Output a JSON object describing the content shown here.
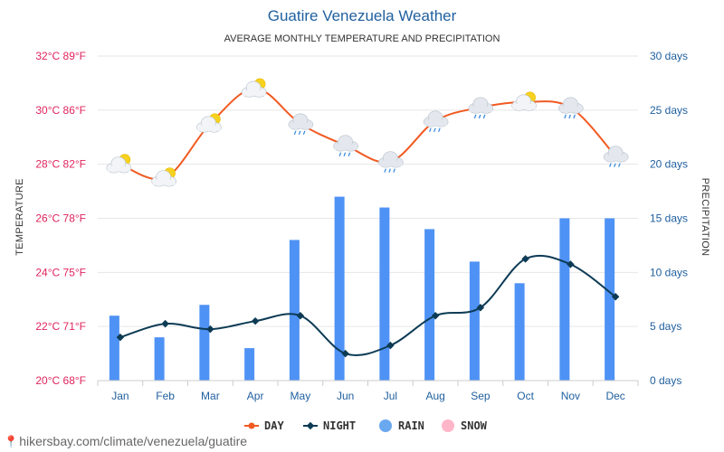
{
  "footer": {
    "source_text": "hikersbay.com/climate/venezuela/guatire",
    "pin_icon": "map-pin-icon"
  },
  "chart_data": {
    "type": "bar+line",
    "title": "Guatire Venezuela Weather",
    "subtitle": "AVERAGE MONTHLY TEMPERATURE AND PRECIPITATION",
    "ylabel_left": "TEMPERATURE",
    "ylabel_right": "PRECIPITATION",
    "categories": [
      "Jan",
      "Feb",
      "Mar",
      "Apr",
      "May",
      "Jun",
      "Jul",
      "Aug",
      "Sep",
      "Oct",
      "Nov",
      "Dec"
    ],
    "ylim_left": [
      20,
      32
    ],
    "ylim_right": [
      0,
      30
    ],
    "left_ticks": [
      {
        "value": 32,
        "label": "32°C 89°F"
      },
      {
        "value": 30,
        "label": "30°C 86°F"
      },
      {
        "value": 28,
        "label": "28°C 82°F"
      },
      {
        "value": 26,
        "label": "26°C 78°F"
      },
      {
        "value": 24,
        "label": "24°C 75°F"
      },
      {
        "value": 22,
        "label": "22°C 71°F"
      },
      {
        "value": 20,
        "label": "20°C 68°F"
      }
    ],
    "right_ticks": [
      {
        "value": 30,
        "label": "30 days"
      },
      {
        "value": 25,
        "label": "25 days"
      },
      {
        "value": 20,
        "label": "20 days"
      },
      {
        "value": 15,
        "label": "15 days"
      },
      {
        "value": 10,
        "label": "10 days"
      },
      {
        "value": 5,
        "label": "5 days"
      },
      {
        "value": 0,
        "label": "0 days"
      }
    ],
    "grid": true,
    "legend_position": "bottom",
    "series": [
      {
        "name": "DAY",
        "kind": "line",
        "axis": "left",
        "color": "#f15a22",
        "values": [
          28.0,
          27.5,
          29.5,
          30.8,
          29.5,
          28.7,
          28.1,
          29.6,
          30.1,
          30.3,
          30.1,
          28.3
        ],
        "icons": [
          "partly-cloudy",
          "partly-cloudy",
          "partly-cloudy",
          "partly-cloudy",
          "cloud-rain",
          "cloud-rain",
          "cloud-rain",
          "cloud-rain",
          "cloud-rain",
          "partly-cloudy",
          "cloud-rain",
          "cloud-rain"
        ]
      },
      {
        "name": "NIGHT",
        "kind": "line",
        "axis": "left",
        "color": "#0d3b55",
        "values": [
          21.6,
          22.1,
          21.9,
          22.2,
          22.4,
          21.0,
          21.3,
          22.4,
          22.7,
          24.5,
          24.3,
          23.1
        ]
      },
      {
        "name": "RAIN",
        "kind": "bar",
        "axis": "right",
        "color": "#4f92f5",
        "values": [
          6,
          4,
          7,
          3,
          13,
          17,
          16,
          14,
          11,
          9,
          15,
          15
        ]
      },
      {
        "name": "SNOW",
        "kind": "bar",
        "axis": "right",
        "color": "#ffb6c8",
        "values": [
          0,
          0,
          0,
          0,
          0,
          0,
          0,
          0,
          0,
          0,
          0,
          0
        ]
      }
    ],
    "legend_colors": {
      "day": "#f15a22",
      "night": "#0d3b55",
      "rain": "#6aa8f0",
      "snow": "#ffb6c8"
    }
  }
}
